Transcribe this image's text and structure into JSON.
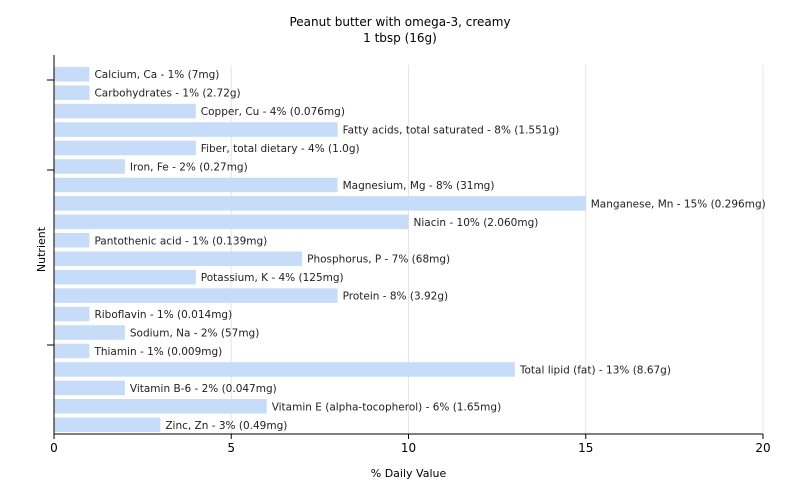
{
  "chart_data": {
    "type": "bar",
    "orientation": "horizontal",
    "title": "Peanut butter with omega-3, creamy",
    "subtitle": "1 tbsp (16g)",
    "xlabel": "% Daily Value",
    "ylabel": "Nutrient",
    "xlim": [
      0,
      20
    ],
    "xticks": [
      0,
      5,
      10,
      15,
      20
    ],
    "grid": true,
    "bar_color": "#c6dcf8",
    "categories": [
      "Calcium, Ca",
      "Carbohydrates",
      "Copper, Cu",
      "Fatty acids, total saturated",
      "Fiber, total dietary",
      "Iron, Fe",
      "Magnesium, Mg",
      "Manganese, Mn",
      "Niacin",
      "Pantothenic acid",
      "Phosphorus, P",
      "Potassium, K",
      "Protein",
      "Riboflavin",
      "Sodium, Na",
      "Thiamin",
      "Total lipid (fat)",
      "Vitamin B-6",
      "Vitamin E (alpha-tocopherol)",
      "Zinc, Zn"
    ],
    "values": [
      1,
      1,
      4,
      8,
      4,
      2,
      8,
      15,
      10,
      1,
      7,
      4,
      8,
      1,
      2,
      1,
      13,
      2,
      6,
      3
    ],
    "labels": [
      "Calcium, Ca - 1% (7mg)",
      "Carbohydrates - 1% (2.72g)",
      "Copper, Cu - 4% (0.076mg)",
      "Fatty acids, total saturated - 8% (1.551g)",
      "Fiber, total dietary - 4% (1.0g)",
      "Iron, Fe - 2% (0.27mg)",
      "Magnesium, Mg - 8% (31mg)",
      "Manganese, Mn - 15% (0.296mg)",
      "Niacin - 10% (2.060mg)",
      "Pantothenic acid - 1% (0.139mg)",
      "Phosphorus, P - 7% (68mg)",
      "Potassium, K - 4% (125mg)",
      "Protein - 8% (3.92g)",
      "Riboflavin - 1% (0.014mg)",
      "Sodium, Na - 2% (57mg)",
      "Thiamin - 1% (0.009mg)",
      "Total lipid (fat) - 13% (8.67g)",
      "Vitamin B-6 - 2% (0.047mg)",
      "Vitamin E (alpha-tocopherol) - 6% (1.65mg)",
      "Zinc, Zn - 3% (0.49mg)"
    ]
  }
}
